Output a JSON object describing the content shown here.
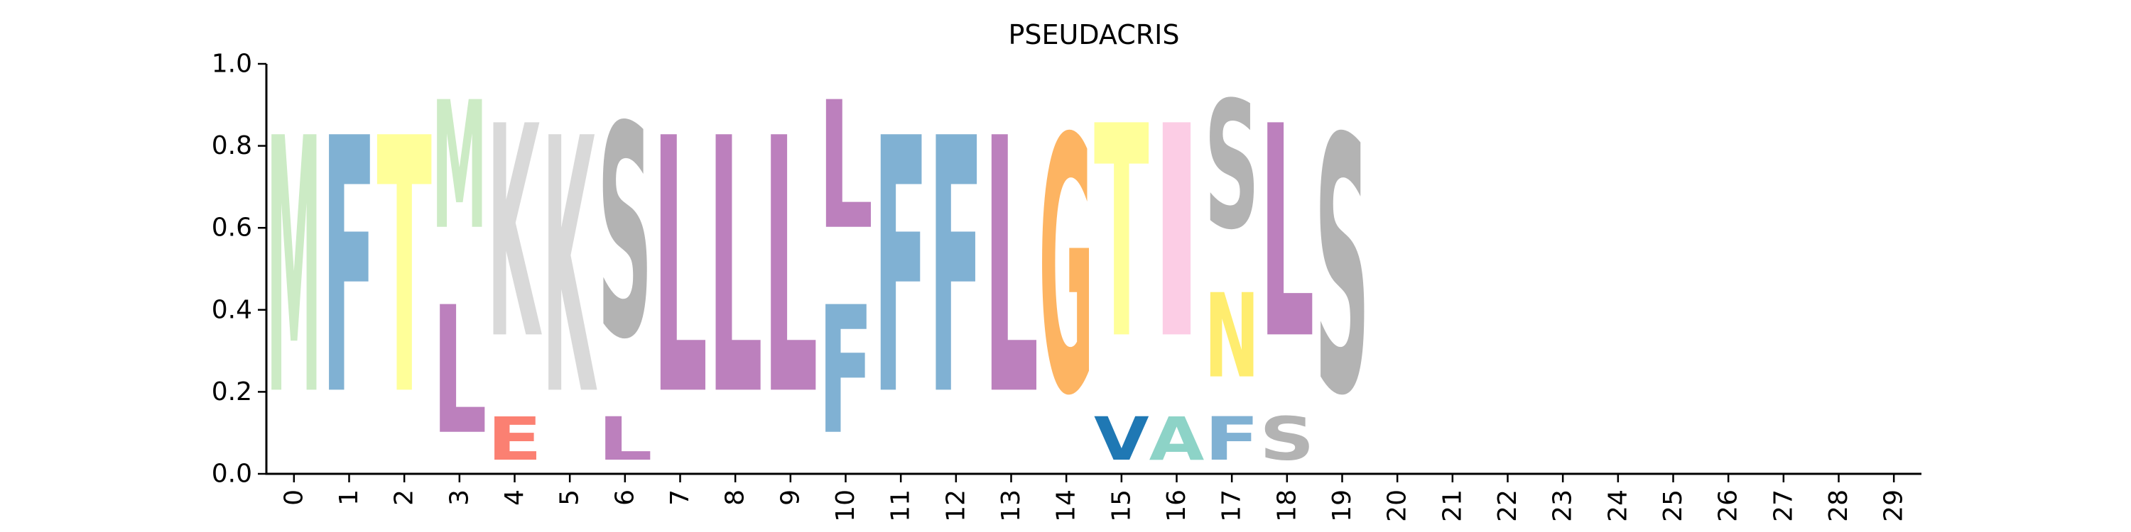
{
  "chart_data": {
    "type": "sequence-logo",
    "title": "PSEUDACRIS",
    "xlabel": "",
    "ylabel": "",
    "ylim": [
      0,
      1
    ],
    "yticks": [
      "0.0",
      "0.2",
      "0.4",
      "0.6",
      "0.8",
      "1.0"
    ],
    "positions": [
      0,
      1,
      2,
      3,
      4,
      5,
      6,
      7,
      8,
      9,
      10,
      11,
      12,
      13,
      14,
      15,
      16,
      17,
      18,
      19,
      20,
      21,
      22,
      23,
      24,
      25,
      26,
      27,
      28,
      29
    ],
    "xtick_labels": [
      "0",
      "1",
      "2",
      "3",
      "4",
      "5",
      "6",
      "7",
      "8",
      "9",
      "10",
      "11",
      "12",
      "13",
      "14",
      "15",
      "16",
      "17",
      "18",
      "19",
      "20",
      "21",
      "22",
      "23",
      "24",
      "25",
      "26",
      "27",
      "28",
      "29"
    ],
    "grid": false,
    "legend": "none",
    "colors": {
      "M": "#ccebc5",
      "F": "#80b1d3",
      "T": "#ffff99",
      "L": "#bc80bd",
      "K": "#d9d9d9",
      "E": "#fb8072",
      "S": "#b3b3b3",
      "G": "#fdb462",
      "V": "#1f78b4",
      "A": "#8dd3c7",
      "I": "#fccde5",
      "N": "#ffed6f"
    },
    "stacks": [
      {
        "pos": 0,
        "letters": [
          {
            "char": "M",
            "value": 1.0
          }
        ]
      },
      {
        "pos": 1,
        "letters": [
          {
            "char": "F",
            "value": 1.0
          }
        ]
      },
      {
        "pos": 2,
        "letters": [
          {
            "char": "T",
            "value": 1.0
          }
        ]
      },
      {
        "pos": 3,
        "letters": [
          {
            "char": "L",
            "value": 0.5
          },
          {
            "char": "M",
            "value": 0.5
          }
        ]
      },
      {
        "pos": 4,
        "letters": [
          {
            "char": "E",
            "value": 0.17
          },
          {
            "char": "K",
            "value": 0.83
          }
        ]
      },
      {
        "pos": 5,
        "letters": [
          {
            "char": "K",
            "value": 1.0
          }
        ]
      },
      {
        "pos": 6,
        "letters": [
          {
            "char": "L",
            "value": 0.17
          },
          {
            "char": "S",
            "value": 0.83
          }
        ]
      },
      {
        "pos": 7,
        "letters": [
          {
            "char": "L",
            "value": 1.0
          }
        ]
      },
      {
        "pos": 8,
        "letters": [
          {
            "char": "L",
            "value": 1.0
          }
        ]
      },
      {
        "pos": 9,
        "letters": [
          {
            "char": "L",
            "value": 1.0
          }
        ]
      },
      {
        "pos": 10,
        "letters": [
          {
            "char": "F",
            "value": 0.5
          },
          {
            "char": "L",
            "value": 0.5
          }
        ]
      },
      {
        "pos": 11,
        "letters": [
          {
            "char": "F",
            "value": 1.0
          }
        ]
      },
      {
        "pos": 12,
        "letters": [
          {
            "char": "F",
            "value": 1.0
          }
        ]
      },
      {
        "pos": 13,
        "letters": [
          {
            "char": "L",
            "value": 1.0
          }
        ]
      },
      {
        "pos": 14,
        "letters": [
          {
            "char": "G",
            "value": 1.0
          }
        ]
      },
      {
        "pos": 15,
        "letters": [
          {
            "char": "V",
            "value": 0.17
          },
          {
            "char": "T",
            "value": 0.83
          }
        ]
      },
      {
        "pos": 16,
        "letters": [
          {
            "char": "A",
            "value": 0.17
          },
          {
            "char": "I",
            "value": 0.83
          }
        ]
      },
      {
        "pos": 17,
        "letters": [
          {
            "char": "F",
            "value": 0.17
          },
          {
            "char": "N",
            "value": 0.33
          },
          {
            "char": "S",
            "value": 0.5
          }
        ]
      },
      {
        "pos": 18,
        "letters": [
          {
            "char": "S",
            "value": 0.17
          },
          {
            "char": "L",
            "value": 0.83
          }
        ]
      },
      {
        "pos": 19,
        "letters": [
          {
            "char": "S",
            "value": 1.0
          }
        ]
      }
    ]
  }
}
